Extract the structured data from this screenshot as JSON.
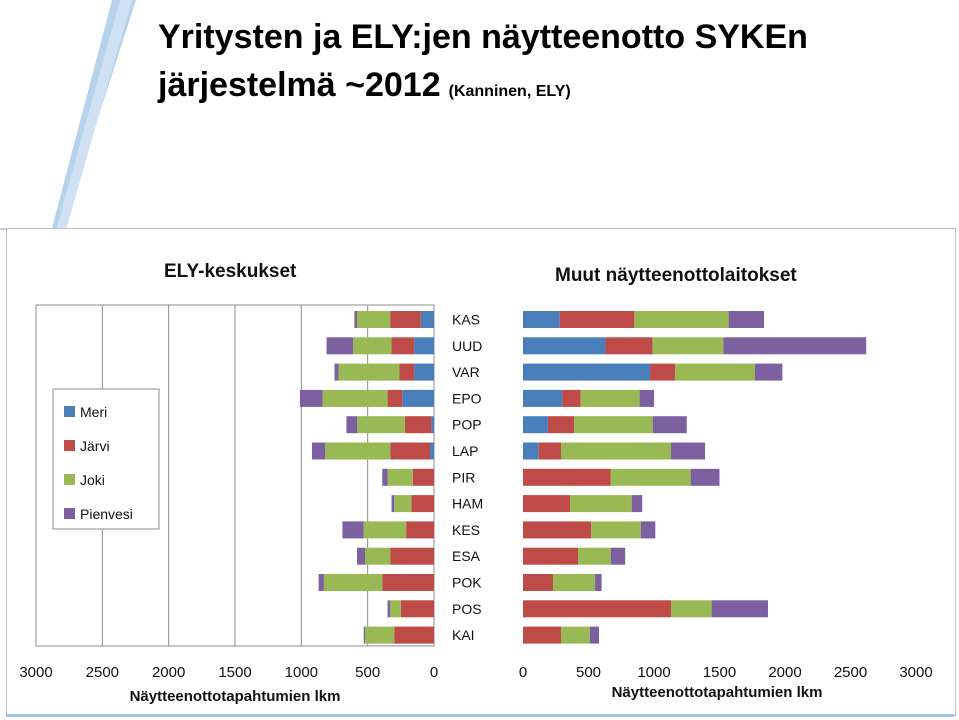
{
  "slide": {
    "title_line1": "Yritysten ja ELY:jen näytteenotto SYKEn",
    "title_line2": "järjestelmä ~2012",
    "title_note": "(Kanninen, ELY)"
  },
  "colors": {
    "Meri": "#4a7ebb",
    "Järvi": "#be4b48",
    "Joki": "#98b954",
    "Pienvesi": "#7d60a0",
    "stripe": "#9fc3e6"
  },
  "chart_data": [
    {
      "type": "bar",
      "orientation": "horizontal",
      "stacked": true,
      "direction": "right-to-left",
      "title": "ELY-keskukset",
      "xlabel": "Näytteenottotapahtumien lkm",
      "xlim": [
        0,
        3000
      ],
      "xticks": [
        "3000",
        "2500",
        "2000",
        "1500",
        "1000",
        "500",
        "0"
      ],
      "grid": true,
      "legend": {
        "position": "left",
        "entries": [
          "Meri",
          "Järvi",
          "Joki",
          "Pienvesi"
        ]
      },
      "categories": [
        "KAS",
        "UUD",
        "VAR",
        "EPO",
        "POP",
        "LAP",
        "PIR",
        "HAM",
        "KES",
        "ESA",
        "POK",
        "POS",
        "KAI"
      ],
      "series": [
        {
          "name": "Meri",
          "values": [
            100,
            150,
            150,
            240,
            20,
            30,
            0,
            0,
            0,
            0,
            0,
            0,
            0
          ]
        },
        {
          "name": "Järvi",
          "values": [
            230,
            170,
            110,
            110,
            200,
            300,
            160,
            170,
            210,
            330,
            390,
            250,
            300
          ]
        },
        {
          "name": "Joki",
          "values": [
            250,
            290,
            460,
            490,
            360,
            490,
            190,
            130,
            320,
            190,
            440,
            80,
            220
          ]
        },
        {
          "name": "Pienvesi",
          "values": [
            20,
            200,
            30,
            170,
            80,
            100,
            40,
            20,
            160,
            60,
            40,
            20,
            10
          ]
        }
      ]
    },
    {
      "type": "bar",
      "orientation": "horizontal",
      "stacked": true,
      "title": "Muut näytteenottolaitokset",
      "xlabel": "Näytteenottotapahtumien lkm",
      "xlim": [
        0,
        3000
      ],
      "xticks": [
        "0",
        "500",
        "1000",
        "1500",
        "2000",
        "2500",
        "3000"
      ],
      "grid": false,
      "categories": [
        "KAS",
        "UUD",
        "VAR",
        "EPO",
        "POP",
        "LAP",
        "PIR",
        "HAM",
        "KES",
        "ESA",
        "POK",
        "POS",
        "KAI"
      ],
      "series": [
        {
          "name": "Meri",
          "values": [
            280,
            630,
            970,
            300,
            190,
            120,
            0,
            0,
            0,
            0,
            0,
            0,
            0
          ]
        },
        {
          "name": "Järvi",
          "values": [
            570,
            360,
            190,
            140,
            200,
            170,
            670,
            360,
            520,
            420,
            230,
            1130,
            290
          ]
        },
        {
          "name": "Joki",
          "values": [
            720,
            540,
            610,
            450,
            600,
            840,
            610,
            470,
            380,
            250,
            320,
            310,
            220
          ]
        },
        {
          "name": "Pienvesi",
          "values": [
            270,
            1090,
            210,
            110,
            260,
            260,
            220,
            80,
            110,
            110,
            50,
            430,
            70
          ]
        }
      ]
    }
  ]
}
